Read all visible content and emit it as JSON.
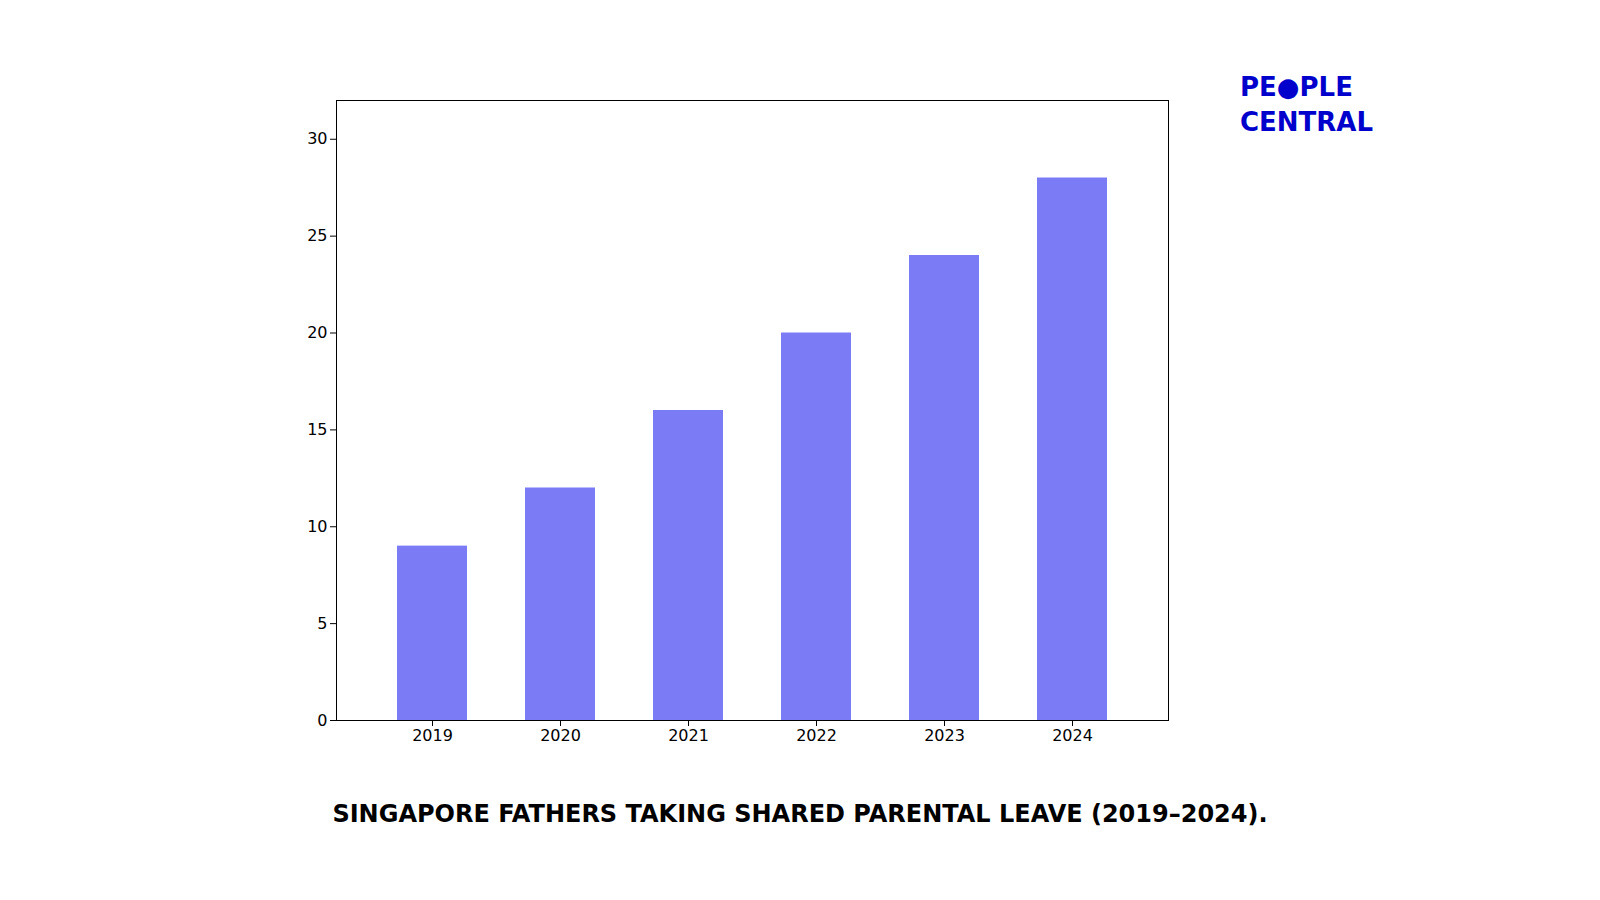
{
  "chart_data": {
    "type": "bar",
    "title": "SINGAPORE FATHERS TAKING SHARED PARENTAL LEAVE (2019–2024).",
    "categories": [
      "2019",
      "2020",
      "2021",
      "2022",
      "2023",
      "2024"
    ],
    "values": [
      9,
      12,
      16,
      20,
      24,
      28
    ],
    "color": "#7B7CF5",
    "ylim": [
      0,
      32
    ],
    "yticks": [
      0,
      5,
      10,
      15,
      20,
      25,
      30
    ],
    "grid": false,
    "annotations": [
      {
        "text": "PE●PLE",
        "color": "#0000CC"
      },
      {
        "text": "CENTRAL",
        "color": "#0000CC"
      }
    ]
  }
}
